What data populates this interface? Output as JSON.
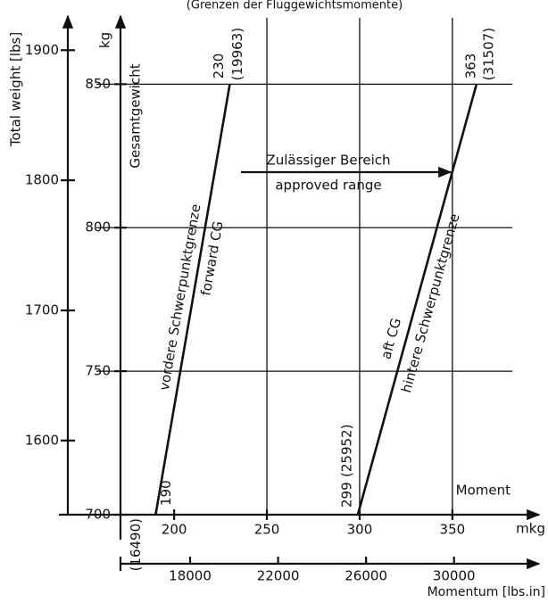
{
  "chart_data": {
    "type": "line",
    "title": "(Grenzen der Fluggewichtsmomente)",
    "y_label": "kg",
    "y_sublabel": "Gesamtgewicht",
    "y2_label": "Total weight [lbs]",
    "x_label": "mkg",
    "x_sublabel": "Moment",
    "x2_label": "Momentum [lbs.in]",
    "annotations": [
      "Zulässiger Bereich",
      "approved range"
    ],
    "xlim": [
      160,
      390
    ],
    "xticks": [
      200,
      250,
      300,
      350
    ],
    "xgrid": [
      250,
      300,
      350
    ],
    "ylim": [
      700,
      870
    ],
    "yticks": [
      700,
      750,
      800,
      850
    ],
    "ygrid": [
      750,
      800,
      850
    ],
    "y2lim": [
      1543,
      1918
    ],
    "y2ticks": [
      1600,
      1700,
      1800,
      1900
    ],
    "x2lim": [
      13900,
      33300
    ],
    "x2ticks": [
      18000,
      22000,
      26000,
      30000
    ],
    "series": [
      {
        "name": "vordere Schwerpunktgrenze",
        "sublabel": "forward CG",
        "color": "#111111",
        "x": [
          190,
          230
        ],
        "values": [
          700,
          850
        ],
        "moment_labels": [
          "(16490)",
          "(19963)"
        ]
      },
      {
        "name": "hintere Schwerpunktgrenze",
        "sublabel": "aft CG",
        "color": "#111111",
        "x": [
          299,
          363
        ],
        "values": [
          700,
          850
        ],
        "moment_labels": [
          "(25952)",
          "(31507)"
        ]
      }
    ]
  }
}
